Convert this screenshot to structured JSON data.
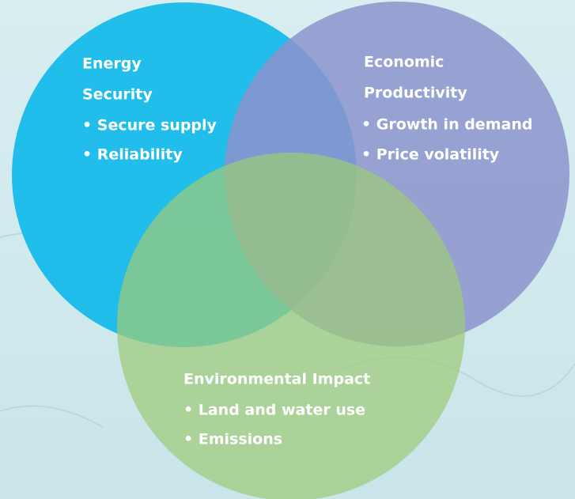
{
  "sets": [
    {
      "title_lines": [
        "Energy",
        "Security"
      ],
      "items": [
        "• Secure supply",
        "• Reliability"
      ]
    },
    {
      "title_lines": [
        "Economic",
        "Productivity"
      ],
      "items": [
        "• Growth in demand",
        "• Price volatility"
      ]
    },
    {
      "title_lines": [
        "Environmental Impact"
      ],
      "items": [
        "• Land and water use",
        "• Emissions"
      ]
    }
  ]
}
